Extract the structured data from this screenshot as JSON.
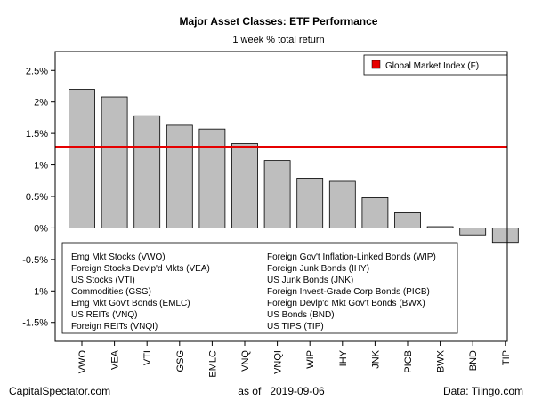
{
  "chart_data": {
    "type": "bar",
    "title": "Major Asset Classes: ETF Performance",
    "subtitle": "1 week % total return",
    "categories": [
      "VWO",
      "VEA",
      "VTI",
      "GSG",
      "EMLC",
      "VNQ",
      "VNQI",
      "WIP",
      "IHY",
      "JNK",
      "PICB",
      "BWX",
      "BND",
      "TIP"
    ],
    "values": [
      2.2,
      2.08,
      1.78,
      1.63,
      1.57,
      1.34,
      1.07,
      0.79,
      0.74,
      0.48,
      0.24,
      0.02,
      -0.11,
      -0.23
    ],
    "ylim": [
      -1.8,
      2.8
    ],
    "yticks": [
      -1.5,
      -1,
      -0.5,
      0,
      0.5,
      1,
      1.5,
      2,
      2.5
    ],
    "ytick_labels": [
      "-1.5%",
      "-1%",
      "-0.5%",
      "0%",
      "0.5%",
      "1%",
      "1.5%",
      "2%",
      "2.5%"
    ],
    "reference_line": {
      "label": "Global Market Index (F)",
      "value": 1.29,
      "color": "#e60000"
    },
    "bar_color": "#bebebe",
    "legend_position": "top-right",
    "descriptions_left": [
      "Emg Mkt Stocks (VWO)",
      "Foreign Stocks Devlp'd Mkts (VEA)",
      "US Stocks (VTI)",
      "Commodities (GSG)",
      "Emg Mkt Gov't Bonds (EMLC)",
      "US REITs (VNQ)",
      "Foreign REITs (VNQI)"
    ],
    "descriptions_right": [
      "Foreign Gov't Inflation-Linked Bonds (WIP)",
      "Foreign Junk Bonds (IHY)",
      "US Junk Bonds (JNK)",
      "Foreign Invest-Grade Corp Bonds (PICB)",
      "Foreign Devlp'd Mkt Gov't Bonds (BWX)",
      "US Bonds (BND)",
      "US TIPS (TIP)"
    ]
  },
  "footer": {
    "left": "CapitalSpectator.com",
    "center": "as of   2019-09-06",
    "right": "Data: Tiingo.com"
  }
}
